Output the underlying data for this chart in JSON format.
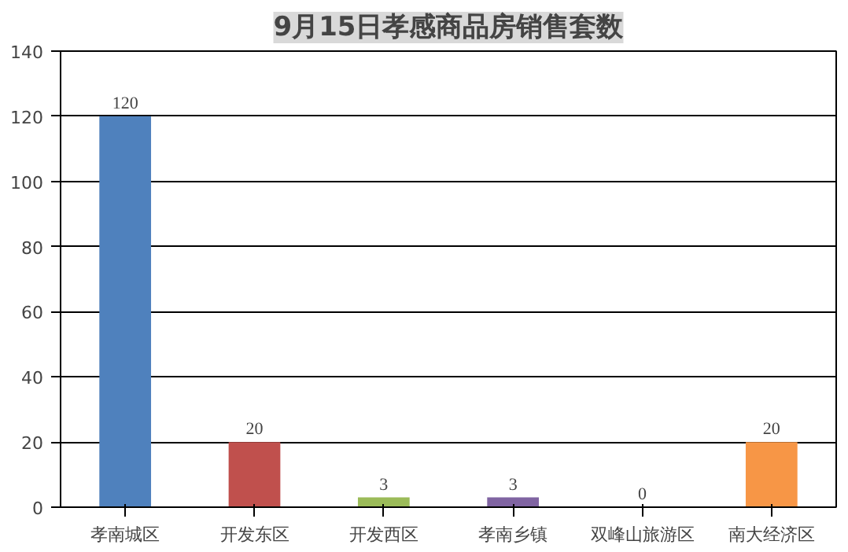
{
  "chart_data": {
    "type": "bar",
    "title": "9月15日孝感商品房销售套数",
    "categories": [
      "孝南城区",
      "开发东区",
      "开发西区",
      "孝南乡镇",
      "双峰山旅游区",
      "南大经济区"
    ],
    "values": [
      120,
      20,
      3,
      3,
      0,
      20
    ],
    "colors": [
      "#4f81bd",
      "#c0504d",
      "#9bbb59",
      "#8064a2",
      "#4bacc6",
      "#f79646"
    ],
    "ylim": [
      0,
      140
    ],
    "yticks": [
      0,
      20,
      40,
      60,
      80,
      100,
      120,
      140
    ],
    "grid": "y",
    "data_labels": true
  }
}
